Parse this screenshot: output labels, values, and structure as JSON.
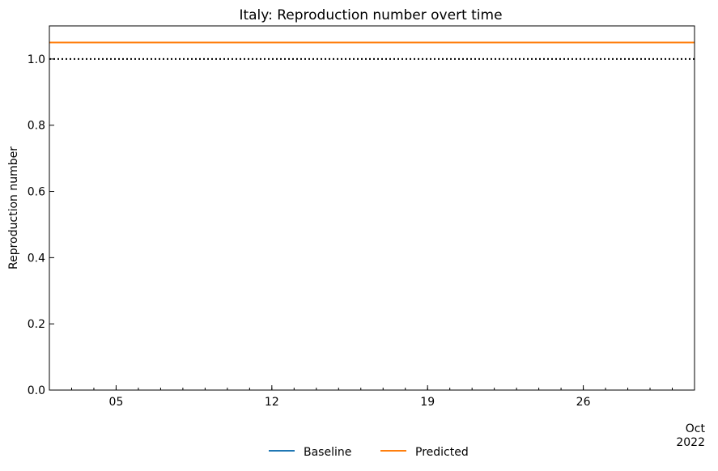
{
  "chart_data": {
    "type": "line",
    "title": "Italy: Reproduction number overt time",
    "xlabel": "",
    "ylabel": "Reproduction number",
    "x_start": "2022-10-02",
    "x_end": "2022-10-31",
    "xlim": [
      "2022-10-02",
      "2022-10-31"
    ],
    "ylim": [
      0,
      1.1
    ],
    "xticks": [
      {
        "date": "2022-10-05",
        "label": "05"
      },
      {
        "date": "2022-10-12",
        "label": "12"
      },
      {
        "date": "2022-10-19",
        "label": "19"
      },
      {
        "date": "2022-10-26",
        "label": "26"
      }
    ],
    "x_offset_label": [
      "Oct",
      "2022"
    ],
    "yticks": [
      0.0,
      0.2,
      0.4,
      0.6,
      0.8,
      1.0
    ],
    "ytick_labels": [
      "0.0",
      "0.2",
      "0.4",
      "0.6",
      "0.8",
      "1.0"
    ],
    "reference_line": {
      "y": 1.0,
      "style": "dotted",
      "color": "#000000"
    },
    "series": [
      {
        "name": "Baseline",
        "color": "#1f77b4",
        "x": [
          "2022-10-02",
          "2022-10-31"
        ],
        "values": [
          1.05,
          1.05
        ]
      },
      {
        "name": "Predicted",
        "color": "#ff7f0e",
        "x": [
          "2022-10-02",
          "2022-10-31"
        ],
        "values": [
          1.05,
          1.05
        ]
      }
    ],
    "legend_position": "bottom-center",
    "grid": false
  }
}
